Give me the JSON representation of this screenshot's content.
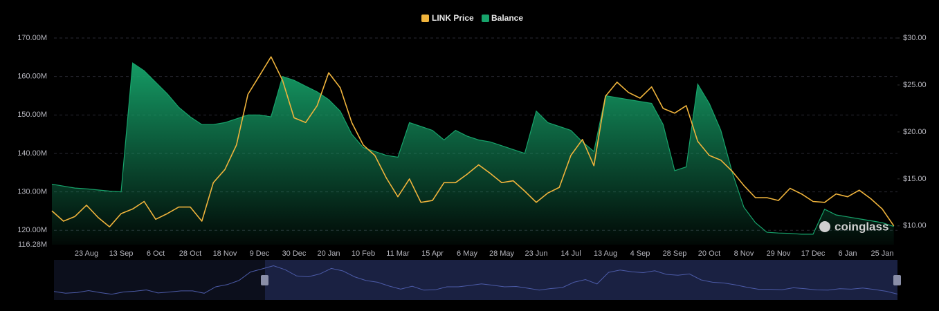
{
  "chart_data": {
    "type": "line",
    "watermark": "coinglass",
    "categories": [
      null,
      null,
      null,
      "23 Aug",
      null,
      null,
      "13 Sep",
      null,
      null,
      "6 Oct",
      null,
      null,
      "28 Oct",
      null,
      null,
      "18 Nov",
      null,
      null,
      "9 Dec",
      null,
      null,
      "30 Dec",
      null,
      null,
      "20 Jan",
      null,
      null,
      "10 Feb",
      null,
      null,
      "11 Mar",
      null,
      null,
      "15 Apr",
      null,
      null,
      "6 May",
      null,
      null,
      "28 May",
      null,
      null,
      "23 Jun",
      null,
      null,
      "14 Jul",
      null,
      null,
      "13 Aug",
      null,
      null,
      "4 Sep",
      null,
      null,
      "28 Sep",
      null,
      null,
      "20 Oct",
      null,
      null,
      "8 Nov",
      null,
      null,
      "29 Nov",
      null,
      null,
      "17 Dec",
      null,
      null,
      "6 Jan",
      null,
      null,
      "25 Jan",
      null
    ],
    "series": [
      {
        "name": "LINK Price",
        "color": "#f0b43c",
        "axis": "y2",
        "values": [
          11.6,
          10.5,
          11.0,
          12.2,
          10.9,
          9.9,
          11.3,
          11.8,
          12.6,
          10.7,
          11.3,
          12.0,
          12.0,
          10.5,
          14.6,
          16.0,
          18.6,
          24.0,
          26.0,
          28.0,
          25.5,
          21.5,
          21.0,
          22.8,
          26.3,
          24.7,
          21.0,
          18.6,
          17.5,
          15.1,
          13.1,
          15.0,
          12.5,
          12.7,
          14.6,
          14.6,
          15.5,
          16.5,
          15.6,
          14.6,
          14.8,
          13.7,
          12.5,
          13.5,
          14.1,
          17.5,
          19.2,
          16.4,
          23.8,
          25.3,
          24.2,
          23.6,
          24.8,
          22.5,
          22.0,
          22.8,
          19.0,
          17.5,
          17.0,
          15.8,
          14.3,
          13.0,
          13.0,
          12.7,
          14.0,
          13.4,
          12.6,
          12.5,
          13.4,
          13.1,
          13.8,
          12.9,
          11.8,
          10.0
        ]
      },
      {
        "name": "Balance",
        "color": "#17a36b",
        "values": [
          132000000,
          131500000,
          131000000,
          130800000,
          130500000,
          130200000,
          130000000,
          163500000,
          161500000,
          158500000,
          155500000,
          152000000,
          149500000,
          147500000,
          147500000,
          148000000,
          149000000,
          150000000,
          150000000,
          149500000,
          160000000,
          159000000,
          157500000,
          156000000,
          154000000,
          151000000,
          145000000,
          141500000,
          140500000,
          139500000,
          139000000,
          148000000,
          147000000,
          146000000,
          143500000,
          146000000,
          144500000,
          143500000,
          143000000,
          142000000,
          141000000,
          140000000,
          151000000,
          148000000,
          147000000,
          146000000,
          143000000,
          140500000,
          155000000,
          154500000,
          154000000,
          153500000,
          153000000,
          147500000,
          135500000,
          136500000,
          158000000,
          153000000,
          146000000,
          135000000,
          126000000,
          122000000,
          119500000,
          119300000,
          119200000,
          119000000,
          119000000,
          125500000,
          124000000,
          123500000,
          123000000,
          122500000,
          122000000,
          121000000
        ]
      }
    ],
    "ylim": [
      116280000,
      170000000
    ],
    "yticks": [
      {
        "value": 116280000,
        "label": "116.28M"
      },
      {
        "value": 120000000,
        "label": "120.00M"
      },
      {
        "value": 130000000,
        "label": "130.00M"
      },
      {
        "value": 140000000,
        "label": "140.00M"
      },
      {
        "value": 150000000,
        "label": "150.00M"
      },
      {
        "value": 160000000,
        "label": "160.00M"
      },
      {
        "value": 170000000,
        "label": "170.00M"
      }
    ],
    "y2lim": [
      8,
      30
    ],
    "y2ticks": [
      {
        "value": 10,
        "label": "$10.00"
      },
      {
        "value": 15,
        "label": "$15.00"
      },
      {
        "value": 20,
        "label": "$20.00"
      },
      {
        "value": 25,
        "label": "$25.00"
      },
      {
        "value": 30,
        "label": "$30.00"
      }
    ],
    "grid": true,
    "legend": "top"
  }
}
